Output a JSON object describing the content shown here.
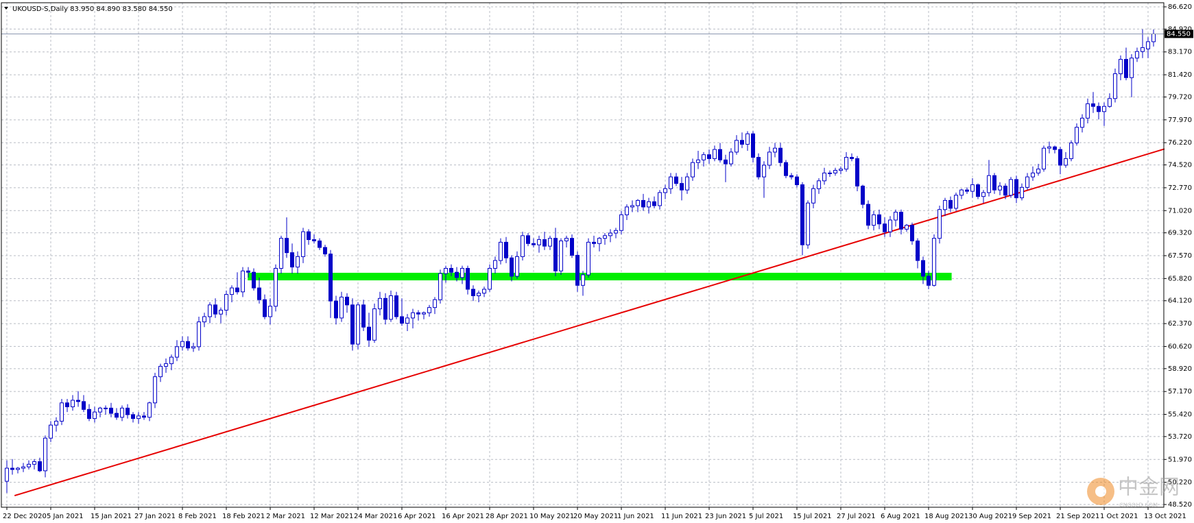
{
  "chart_data": {
    "type": "candlestick",
    "title": "UKOUSD-S,Daily  83.950 84.890 83.580 84.550",
    "color": "#0000c8",
    "grid": true,
    "ylim": [
      48.52,
      86.62
    ],
    "yticks": [
      {
        "value": 48.52,
        "label": "48.520"
      },
      {
        "value": 50.22,
        "label": "50.220"
      },
      {
        "value": 51.97,
        "label": "51.970"
      },
      {
        "value": 53.72,
        "label": "53.720"
      },
      {
        "value": 55.42,
        "label": "55.420"
      },
      {
        "value": 57.17,
        "label": "57.170"
      },
      {
        "value": 58.92,
        "label": "58.920"
      },
      {
        "value": 60.62,
        "label": "60.620"
      },
      {
        "value": 62.37,
        "label": "62.370"
      },
      {
        "value": 64.12,
        "label": "64.120"
      },
      {
        "value": 65.82,
        "label": "65.820"
      },
      {
        "value": 67.57,
        "label": "67.570"
      },
      {
        "value": 69.32,
        "label": "69.320"
      },
      {
        "value": 71.02,
        "label": "71.020"
      },
      {
        "value": 72.77,
        "label": "72.770"
      },
      {
        "value": 74.52,
        "label": "74.520"
      },
      {
        "value": 76.22,
        "label": "76.220"
      },
      {
        "value": 77.97,
        "label": "77.970"
      },
      {
        "value": 79.72,
        "label": "79.720"
      },
      {
        "value": 81.42,
        "label": "81.420"
      },
      {
        "value": 83.17,
        "label": "83.170"
      },
      {
        "value": 84.92,
        "label": "84.920"
      },
      {
        "value": 86.62,
        "label": "86.620"
      }
    ],
    "xticks": [
      {
        "value": 0,
        "label": "22 Dec 2020"
      },
      {
        "value": 8,
        "label": "5 Jan 2021"
      },
      {
        "value": 16,
        "label": "15 Jan 2021"
      },
      {
        "value": 24,
        "label": "27 Jan 2021"
      },
      {
        "value": 32,
        "label": "8 Feb 2021"
      },
      {
        "value": 40,
        "label": "18 Feb 2021"
      },
      {
        "value": 48,
        "label": "2 Mar 2021"
      },
      {
        "value": 56,
        "label": "12 Mar 2021"
      },
      {
        "value": 64,
        "label": "24 Mar 2021"
      },
      {
        "value": 72,
        "label": "6 Apr 2021"
      },
      {
        "value": 80,
        "label": "16 Apr 2021"
      },
      {
        "value": 88,
        "label": "28 Apr 2021"
      },
      {
        "value": 96,
        "label": "10 May 2021"
      },
      {
        "value": 104,
        "label": "20 May 2021"
      },
      {
        "value": 112,
        "label": "1 Jun 2021"
      },
      {
        "value": 120,
        "label": "11 Jun 2021"
      },
      {
        "value": 128,
        "label": "23 Jun 2021"
      },
      {
        "value": 136,
        "label": "5 Jul 2021"
      },
      {
        "value": 144,
        "label": "15 Jul 2021"
      },
      {
        "value": 152,
        "label": "27 Jul 2021"
      },
      {
        "value": 160,
        "label": "6 Aug 2021"
      },
      {
        "value": 168,
        "label": "18 Aug 2021"
      },
      {
        "value": 176,
        "label": "30 Aug 2021"
      },
      {
        "value": 184,
        "label": "9 Sep 2021"
      },
      {
        "value": 192,
        "label": "21 Sep 2021"
      },
      {
        "value": 200,
        "label": "1 Oct 2021"
      },
      {
        "value": 208,
        "label": "13 Oct 2021"
      }
    ],
    "open": [
      50.3,
      51.3,
      51.2,
      51.3,
      51.4,
      51.6,
      51.8,
      51.1,
      53.6,
      54.6,
      54.9,
      56.3,
      56.0,
      56.5,
      56.4,
      55.8,
      55.1,
      55.6,
      55.9,
      55.9,
      55.5,
      55.2,
      55.9,
      55.4,
      55.1,
      55.3,
      55.2,
      56.3,
      58.3,
      59.1,
      59.3,
      59.8,
      60.6,
      61.0,
      60.5,
      60.6,
      62.5,
      62.9,
      63.8,
      63.1,
      63.4,
      64.6,
      65.1,
      64.8,
      66.4,
      66.3,
      65.1,
      64.2,
      62.9,
      63.7,
      66.6,
      68.9,
      67.8,
      66.7,
      67.5,
      69.4,
      68.8,
      68.7,
      68.2,
      67.7,
      64.1,
      62.8,
      64.4,
      63.8,
      60.8,
      63.8,
      62.1,
      61.1,
      63.5,
      64.3,
      62.7,
      64.5,
      62.9,
      62.4,
      62.8,
      63.2,
      63.1,
      63.2,
      63.6,
      64.2,
      66.2,
      66.6,
      66.3,
      65.9,
      66.6,
      65.0,
      64.5,
      64.7,
      65.0,
      66.6,
      67.2,
      68.6,
      67.4,
      66.0,
      67.5,
      69.1,
      68.5,
      68.4,
      68.8,
      68.3,
      68.9,
      66.4,
      68.7,
      68.9,
      67.6,
      65.3,
      66.1,
      68.6,
      68.5,
      68.9,
      69.1,
      69.3,
      69.5,
      70.7,
      71.3,
      71.4,
      71.8,
      71.3,
      71.7,
      71.4,
      72.4,
      72.7,
      73.6,
      73.1,
      72.6,
      73.6,
      74.7,
      74.9,
      75.3,
      75.0,
      75.7,
      74.9,
      74.6,
      75.5,
      76.4,
      76.1,
      76.9,
      75.1,
      73.6,
      74.5,
      75.5,
      75.8,
      74.7,
      73.7,
      73.6,
      73.0,
      68.4,
      71.6,
      72.7,
      73.3,
      73.9,
      73.9,
      74.1,
      74.2,
      75.1,
      75.0,
      72.9,
      71.5,
      69.9,
      70.7,
      70.0,
      69.4,
      70.3,
      70.9,
      69.6,
      69.9,
      68.7,
      67.2,
      66.0,
      65.3,
      68.9,
      71.1,
      71.8,
      71.2,
      72.2,
      72.6,
      72.5,
      73.0,
      72.1,
      72.4,
      73.7,
      72.6,
      72.9,
      72.2,
      73.4,
      72.0,
      72.8,
      73.6,
      73.9,
      74.2,
      75.8,
      75.9,
      75.7,
      74.5,
      75.0,
      76.2,
      77.4,
      78.1,
      79.2,
      79.0,
      78.6,
      79.0,
      79.6,
      81.5,
      82.6,
      81.2,
      82.7,
      83.2,
      83.4,
      83.95
    ],
    "high": [
      51.9,
      52.0,
      51.4,
      51.7,
      51.9,
      52.0,
      52.1,
      53.8,
      54.9,
      55.2,
      56.6,
      56.6,
      56.9,
      57.2,
      56.9,
      56.2,
      56.0,
      56.0,
      56.1,
      56.3,
      55.9,
      56.1,
      56.2,
      55.6,
      55.6,
      55.6,
      56.4,
      58.6,
      59.3,
      59.7,
      60.0,
      61.1,
      61.4,
      61.4,
      60.9,
      62.9,
      63.2,
      64.0,
      64.3,
      63.6,
      64.9,
      65.3,
      66.3,
      66.7,
      66.7,
      66.6,
      65.9,
      64.6,
      64.3,
      66.9,
      69.1,
      70.5,
      68.5,
      67.9,
      69.7,
      69.6,
      69.2,
      68.9,
      68.4,
      68.0,
      64.5,
      64.8,
      64.7,
      64.3,
      64.0,
      64.2,
      63.2,
      63.9,
      64.8,
      64.7,
      64.9,
      64.8,
      64.3,
      63.1,
      63.5,
      63.4,
      63.3,
      63.8,
      64.4,
      66.5,
      66.8,
      66.9,
      66.7,
      66.8,
      66.8,
      65.3,
      64.9,
      65.2,
      66.9,
      67.5,
      68.9,
      69.0,
      67.6,
      67.9,
      69.4,
      69.3,
      68.9,
      69.1,
      69.4,
      69.1,
      69.7,
      68.9,
      69.1,
      69.2,
      67.9,
      66.4,
      68.9,
      69.1,
      69.0,
      69.3,
      69.6,
      69.7,
      71.0,
      71.5,
      71.8,
      71.9,
      72.3,
      72.0,
      72.1,
      72.6,
      73.0,
      73.9,
      73.9,
      73.6,
      73.9,
      75.0,
      75.6,
      75.5,
      75.7,
      76.0,
      76.2,
      75.3,
      75.8,
      76.8,
      77.0,
      77.1,
      77.1,
      75.4,
      74.8,
      75.9,
      76.2,
      76.2,
      74.9,
      73.9,
      73.8,
      73.2,
      71.8,
      73.0,
      73.5,
      74.3,
      74.1,
      74.3,
      74.4,
      75.5,
      75.4,
      75.2,
      73.0,
      71.8,
      71.0,
      71.1,
      70.5,
      70.6,
      71.1,
      71.1,
      70.0,
      70.1,
      68.9,
      67.5,
      66.4,
      69.2,
      71.4,
      72.0,
      72.1,
      72.4,
      72.7,
      72.8,
      73.5,
      73.1,
      72.6,
      74.9,
      73.9,
      73.2,
      73.1,
      73.6,
      73.7,
      73.1,
      73.9,
      74.4,
      74.6,
      76.0,
      76.3,
      76.0,
      75.9,
      75.5,
      76.4,
      77.7,
      78.4,
      79.6,
      80.1,
      79.3,
      79.3,
      80.0,
      81.9,
      82.9,
      83.5,
      83.0,
      83.5,
      84.9,
      84.3,
      84.89
    ],
    "low": [
      49.4,
      50.8,
      50.9,
      51.0,
      51.2,
      51.2,
      51.0,
      50.6,
      53.3,
      54.1,
      54.6,
      55.6,
      55.7,
      56.0,
      55.6,
      54.9,
      54.8,
      55.2,
      55.4,
      55.2,
      55.0,
      54.9,
      55.1,
      54.8,
      54.7,
      55.0,
      54.9,
      55.9,
      57.9,
      58.6,
      58.8,
      59.5,
      60.3,
      60.3,
      60.2,
      60.3,
      62.1,
      62.4,
      62.8,
      62.4,
      63.0,
      64.0,
      64.6,
      64.4,
      65.9,
      64.9,
      63.9,
      62.7,
      62.3,
      63.3,
      66.2,
      67.4,
      66.2,
      66.2,
      67.0,
      68.4,
      68.5,
      68.0,
      67.5,
      62.8,
      62.3,
      62.5,
      63.2,
      60.3,
      60.4,
      61.8,
      60.6,
      60.9,
      63.0,
      62.3,
      62.5,
      62.7,
      62.2,
      61.8,
      62.0,
      62.6,
      62.7,
      62.9,
      63.1,
      63.9,
      65.5,
      66.0,
      65.6,
      65.4,
      64.6,
      64.1,
      64.0,
      64.4,
      64.8,
      66.2,
      66.9,
      67.0,
      65.6,
      65.8,
      67.2,
      68.3,
      68.2,
      67.8,
      68.0,
      68.0,
      66.0,
      66.1,
      68.2,
      67.4,
      64.8,
      64.5,
      65.9,
      68.2,
      67.9,
      68.4,
      68.6,
      68.9,
      69.2,
      70.3,
      70.9,
      70.9,
      71.0,
      70.8,
      71.2,
      71.1,
      71.9,
      72.3,
      72.9,
      71.8,
      72.3,
      73.3,
      74.2,
      74.4,
      74.6,
      74.8,
      74.7,
      73.2,
      74.4,
      75.3,
      75.8,
      75.6,
      74.7,
      73.4,
      72.0,
      74.2,
      75.1,
      74.4,
      73.5,
      73.4,
      72.8,
      67.6,
      68.1,
      71.2,
      72.3,
      73.0,
      73.6,
      73.7,
      73.8,
      74.0,
      74.8,
      72.5,
      71.2,
      69.6,
      69.5,
      69.6,
      69.0,
      69.0,
      69.8,
      69.2,
      69.4,
      68.4,
      66.6,
      65.4,
      65.0,
      65.2,
      68.5,
      70.6,
      70.9,
      71.0,
      71.9,
      72.3,
      72.0,
      71.9,
      71.6,
      72.1,
      72.3,
      72.2,
      71.9,
      72.0,
      71.6,
      71.8,
      72.6,
      73.3,
      73.7,
      74.0,
      75.4,
      75.4,
      73.8,
      74.3,
      74.8,
      76.0,
      77.0,
      77.7,
      78.5,
      78.0,
      77.5,
      78.9,
      79.3,
      81.0,
      81.0,
      79.7,
      82.4,
      82.7,
      82.7,
      83.58
    ],
    "close": [
      51.3,
      51.2,
      51.3,
      51.4,
      51.6,
      51.8,
      51.1,
      53.6,
      54.6,
      54.9,
      56.3,
      56.0,
      56.5,
      56.4,
      55.8,
      55.1,
      55.6,
      55.9,
      55.9,
      55.5,
      55.2,
      55.9,
      55.4,
      55.1,
      55.3,
      55.2,
      56.3,
      58.3,
      59.1,
      59.3,
      59.8,
      60.6,
      61.0,
      60.5,
      60.6,
      62.5,
      62.9,
      63.8,
      63.1,
      63.4,
      64.6,
      65.1,
      64.8,
      66.4,
      66.3,
      65.1,
      64.2,
      62.9,
      63.7,
      66.6,
      68.9,
      67.8,
      66.7,
      67.5,
      69.4,
      68.8,
      68.7,
      68.2,
      67.7,
      64.1,
      62.8,
      64.4,
      63.8,
      60.8,
      63.8,
      62.1,
      61.1,
      63.5,
      64.3,
      62.7,
      64.5,
      62.9,
      62.4,
      62.8,
      63.2,
      63.1,
      63.2,
      63.6,
      64.2,
      66.2,
      66.6,
      66.3,
      65.9,
      66.6,
      65.0,
      64.5,
      64.7,
      65.0,
      66.6,
      67.2,
      68.6,
      67.4,
      66.0,
      67.5,
      69.1,
      68.5,
      68.4,
      68.8,
      68.3,
      68.9,
      66.4,
      68.7,
      68.9,
      67.6,
      65.3,
      66.1,
      68.6,
      68.5,
      68.9,
      69.1,
      69.3,
      69.5,
      70.7,
      71.3,
      71.4,
      71.8,
      71.3,
      71.7,
      71.4,
      72.4,
      72.7,
      73.6,
      73.1,
      72.6,
      73.6,
      74.7,
      74.9,
      75.3,
      75.0,
      75.7,
      74.9,
      74.6,
      75.5,
      76.4,
      76.1,
      76.9,
      75.1,
      73.6,
      74.5,
      75.5,
      75.8,
      74.7,
      73.7,
      73.6,
      73.0,
      68.4,
      71.6,
      72.7,
      73.3,
      73.9,
      73.9,
      74.1,
      74.2,
      75.1,
      75.0,
      72.9,
      71.5,
      69.9,
      70.7,
      70.0,
      69.4,
      70.3,
      70.9,
      69.6,
      69.9,
      68.7,
      67.2,
      66.0,
      65.3,
      68.9,
      71.1,
      71.8,
      71.2,
      72.2,
      72.6,
      72.5,
      73.0,
      72.1,
      72.4,
      73.7,
      72.6,
      72.9,
      72.2,
      73.4,
      72.0,
      72.8,
      73.6,
      73.9,
      74.2,
      75.8,
      75.9,
      75.7,
      74.5,
      75.0,
      76.2,
      77.4,
      78.1,
      79.2,
      79.0,
      78.6,
      79.0,
      79.6,
      81.5,
      82.6,
      81.2,
      82.7,
      83.2,
      83.5,
      83.95,
      84.55
    ],
    "last_price": {
      "value": 84.55,
      "label": "84.550"
    },
    "trendline": {
      "color": "#e60000",
      "x": [
        1.4,
        211
      ],
      "y": [
        49.2,
        75.74
      ]
    },
    "zone": {
      "color": "#00ee00",
      "x": [
        43.9,
        172.2
      ],
      "y": [
        65.68,
        66.26
      ]
    }
  },
  "watermark": {
    "name": "中金网",
    "site": "CNGOLD.COM"
  }
}
